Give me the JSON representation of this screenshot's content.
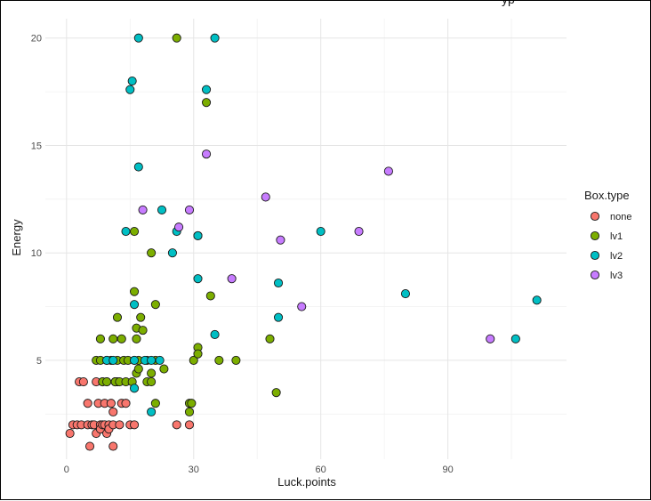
{
  "chart_data": {
    "type": "scatter",
    "title": "",
    "clipped_title_fragment": "yp",
    "xlabel": "Luck.points",
    "ylabel": "Energy",
    "xlim": [
      -5,
      118
    ],
    "ylim": [
      0.4,
      20.9
    ],
    "x_ticks": [
      0,
      30,
      60,
      90
    ],
    "y_ticks": [
      5,
      10,
      15,
      20
    ],
    "grid": true,
    "legend_position": "right",
    "legend_title": "Box.type",
    "series": [
      {
        "name": "none",
        "color": "#F8766D",
        "points": [
          [
            0.8,
            1.6
          ],
          [
            1.5,
            2
          ],
          [
            2.5,
            2
          ],
          [
            3,
            4
          ],
          [
            3.5,
            2
          ],
          [
            4,
            4
          ],
          [
            5,
            3
          ],
          [
            5,
            2
          ],
          [
            5.5,
            1
          ],
          [
            6,
            2
          ],
          [
            6.5,
            2
          ],
          [
            7,
            4
          ],
          [
            7,
            1.6
          ],
          [
            7.5,
            3
          ],
          [
            8,
            2
          ],
          [
            8,
            1.8
          ],
          [
            8.5,
            2
          ],
          [
            8.5,
            4
          ],
          [
            9,
            3
          ],
          [
            9,
            2
          ],
          [
            9.5,
            1.6
          ],
          [
            9.5,
            4
          ],
          [
            10,
            2
          ],
          [
            10,
            1.8
          ],
          [
            10.5,
            3
          ],
          [
            11,
            2.6
          ],
          [
            11,
            1
          ],
          [
            11,
            2
          ],
          [
            11.5,
            4
          ],
          [
            12,
            4
          ],
          [
            12.5,
            2
          ],
          [
            13,
            3
          ],
          [
            14,
            3
          ],
          [
            15,
            2
          ],
          [
            16,
            2
          ],
          [
            26,
            2
          ],
          [
            29,
            2
          ]
        ]
      },
      {
        "name": "lv1",
        "color": "#7CAE00",
        "points": [
          [
            26,
            20
          ],
          [
            33,
            17
          ],
          [
            16,
            11
          ],
          [
            31,
            10.8
          ],
          [
            20,
            10
          ],
          [
            16,
            8.2
          ],
          [
            34,
            8
          ],
          [
            21,
            7.6
          ],
          [
            12,
            7
          ],
          [
            17.5,
            7
          ],
          [
            16.5,
            6.5
          ],
          [
            18,
            6.4
          ],
          [
            8,
            6
          ],
          [
            11,
            6
          ],
          [
            13,
            6
          ],
          [
            16.5,
            6
          ],
          [
            48,
            6
          ],
          [
            7,
            5
          ],
          [
            8,
            5
          ],
          [
            9.5,
            5
          ],
          [
            10.5,
            5
          ],
          [
            12,
            5
          ],
          [
            13.5,
            5
          ],
          [
            14.5,
            5
          ],
          [
            16,
            5
          ],
          [
            17,
            5
          ],
          [
            19,
            5
          ],
          [
            21,
            5
          ],
          [
            30,
            5
          ],
          [
            36,
            5
          ],
          [
            40,
            5
          ],
          [
            31,
            5.6
          ],
          [
            31,
            5.3
          ],
          [
            8.5,
            4
          ],
          [
            9.5,
            4
          ],
          [
            11.5,
            4
          ],
          [
            12.5,
            4
          ],
          [
            14,
            4
          ],
          [
            15.5,
            4
          ],
          [
            19,
            4
          ],
          [
            20,
            4
          ],
          [
            16.5,
            4.4
          ],
          [
            20,
            4.4
          ],
          [
            17,
            4.6
          ],
          [
            23,
            4.6
          ],
          [
            21,
            3
          ],
          [
            29,
            3
          ],
          [
            29.5,
            3
          ],
          [
            29,
            2.6
          ],
          [
            49.5,
            3.5
          ]
        ]
      },
      {
        "name": "lv2",
        "color": "#00BFC4",
        "points": [
          [
            17,
            20
          ],
          [
            35,
            20
          ],
          [
            15.5,
            18
          ],
          [
            15,
            17.6
          ],
          [
            33,
            17.6
          ],
          [
            17,
            14
          ],
          [
            14,
            11
          ],
          [
            22.5,
            12
          ],
          [
            26,
            11
          ],
          [
            60,
            11
          ],
          [
            25,
            10
          ],
          [
            31,
            10.8
          ],
          [
            31,
            8.8
          ],
          [
            50,
            8.6
          ],
          [
            80,
            8.1
          ],
          [
            16,
            7.6
          ],
          [
            111,
            7.8
          ],
          [
            50,
            7
          ],
          [
            35,
            6.2
          ],
          [
            106,
            6
          ],
          [
            9.5,
            5
          ],
          [
            11,
            5
          ],
          [
            16,
            5
          ],
          [
            18.5,
            5
          ],
          [
            20,
            5
          ],
          [
            22,
            5
          ],
          [
            16,
            3.7
          ],
          [
            20,
            2.6
          ]
        ]
      },
      {
        "name": "lv3",
        "color": "#C77CFF",
        "points": [
          [
            33,
            14.6
          ],
          [
            76,
            13.8
          ],
          [
            47,
            12.6
          ],
          [
            18,
            12
          ],
          [
            29,
            12
          ],
          [
            26.5,
            11.2
          ],
          [
            50.5,
            10.6
          ],
          [
            69,
            11
          ],
          [
            39,
            8.8
          ],
          [
            55.5,
            7.5
          ],
          [
            100,
            6
          ]
        ]
      }
    ]
  }
}
